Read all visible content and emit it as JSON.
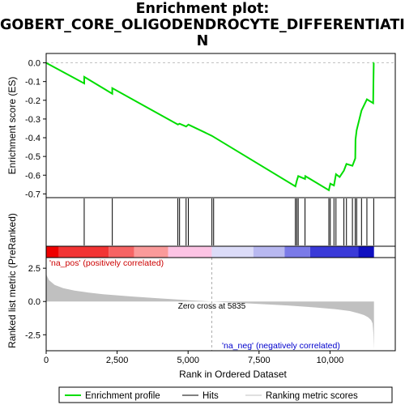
{
  "chart_data": {
    "type": "line",
    "title_lines": [
      "Enrichment plot:",
      "GOBERT_CORE_OLIGODENDROCYTE_DIFFERENTIATIO",
      "N"
    ],
    "top_panel": {
      "ylabel": "Enrichment score (ES)",
      "ylim": [
        -0.72,
        0.05
      ],
      "yticks": [
        0.0,
        -0.1,
        -0.2,
        -0.3,
        -0.4,
        -0.5,
        -0.6,
        -0.7
      ],
      "ytick_labels": [
        "0.0",
        "-0.1",
        "-0.2",
        "-0.3",
        "-0.4",
        "-0.5",
        "-0.6",
        "-0.7"
      ],
      "series": [
        {
          "name": "Enrichment profile",
          "color": "#00dd00",
          "x": [
            0,
            1340,
            1340,
            2330,
            2330,
            4640,
            4700,
            4930,
            5010,
            5840,
            8780,
            8830,
            8880,
            9120,
            9130,
            9960,
            10010,
            10140,
            10210,
            10340,
            10490,
            10580,
            10790,
            10890,
            10900,
            10940,
            11110,
            11300,
            11520,
            11530,
            11540,
            11550
          ],
          "y": [
            0.0,
            -0.11,
            -0.075,
            -0.165,
            -0.135,
            -0.33,
            -0.325,
            -0.34,
            -0.33,
            -0.39,
            -0.66,
            -0.63,
            -0.605,
            -0.62,
            -0.605,
            -0.68,
            -0.645,
            -0.655,
            -0.595,
            -0.61,
            -0.575,
            -0.54,
            -0.55,
            -0.51,
            -0.41,
            -0.36,
            -0.255,
            -0.195,
            -0.215,
            -0.11,
            0.0,
            0.0
          ]
        }
      ]
    },
    "hits": {
      "name": "Hits",
      "x": [
        1340,
        2330,
        4640,
        4700,
        4930,
        5010,
        5840,
        5900,
        8780,
        8830,
        8880,
        9120,
        9960,
        10010,
        10140,
        10210,
        10490,
        10580,
        10790,
        10890,
        10940,
        11110,
        11300,
        11540
      ]
    },
    "color_bar": {
      "segments": [
        {
          "to": 450,
          "color": "#ee0000"
        },
        {
          "to": 2200,
          "color": "#f23434"
        },
        {
          "to": 3100,
          "color": "#f66464"
        },
        {
          "to": 4300,
          "color": "#fa9a9a"
        },
        {
          "to": 5835,
          "color": "#fcc4e4"
        },
        {
          "to": 7300,
          "color": "#dcdcf8"
        },
        {
          "to": 8400,
          "color": "#b8b8f0"
        },
        {
          "to": 9300,
          "color": "#7a7ae8"
        },
        {
          "to": 11000,
          "color": "#3a3ad8"
        },
        {
          "to": 11550,
          "color": "#1010c0"
        }
      ]
    },
    "bottom_panel": {
      "ylabel": "Ranked list metric (PreRanked)",
      "ylim": [
        -3.7,
        3.3
      ],
      "yticks": [
        2.5,
        0.0,
        -2.5
      ],
      "ytick_labels": [
        "2.5",
        "0.0",
        "-2.5"
      ],
      "metric_curve": {
        "name": "Ranking metric scores",
        "color": "#c0c0c0",
        "x": [
          0,
          20,
          100,
          300,
          600,
          1000,
          1500,
          2000,
          3000,
          4000,
          5000,
          5835,
          6500,
          7500,
          8500,
          9500,
          10200,
          10700,
          11000,
          11200,
          11350,
          11450,
          11500,
          11530,
          11550
        ],
        "y": [
          2.3,
          1.95,
          1.6,
          1.25,
          1.0,
          0.82,
          0.67,
          0.55,
          0.38,
          0.23,
          0.1,
          0.0,
          -0.08,
          -0.18,
          -0.3,
          -0.45,
          -0.58,
          -0.72,
          -0.88,
          -1.02,
          -1.2,
          -1.4,
          -1.65,
          -2.4,
          -3.6
        ]
      },
      "label_pos": "'na_pos' (positively correlated)",
      "label_neg": "'na_neg' (negatively correlated)",
      "zero_cross_label": "Zero cross at 5835",
      "zero_cross": 5835
    },
    "xaxis": {
      "xlabel": "Rank in Ordered Dataset",
      "xlim": [
        0,
        12300
      ],
      "xticks": [
        0,
        2500,
        5000,
        7500,
        10000
      ],
      "xtick_labels": [
        "0",
        "2,500",
        "5,000",
        "7,500",
        "10,000"
      ]
    },
    "legend": {
      "position": "bottom",
      "entries": [
        {
          "label": "Enrichment profile",
          "color": "#00dd00"
        },
        {
          "label": "Hits",
          "color": "#000000"
        },
        {
          "label": "Ranking metric scores",
          "color": "#c0c0c0"
        }
      ]
    }
  }
}
